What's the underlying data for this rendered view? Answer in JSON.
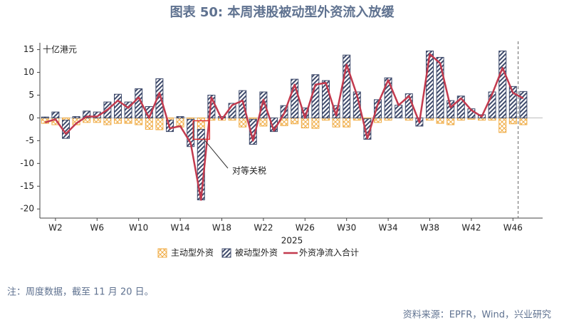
{
  "chart_data": {
    "type": "bar",
    "title": "图表 50: 本周港股被动型外资流入放缓",
    "y_label": "十亿港元",
    "x_label": "2025",
    "annotation": "对等关税",
    "note": "注：周度数据，截至 11 月 20 日。",
    "source": "资料来源：EPFR，Wind，兴业研究",
    "categories": [
      null,
      "W2",
      null,
      null,
      null,
      "W6",
      null,
      null,
      null,
      "W10",
      null,
      null,
      null,
      "W14",
      null,
      null,
      null,
      "W18",
      null,
      null,
      null,
      "W22",
      null,
      null,
      null,
      "W26",
      null,
      null,
      null,
      "W30",
      null,
      null,
      null,
      "W34",
      null,
      null,
      null,
      "W38",
      null,
      null,
      null,
      "W42",
      null,
      null,
      null,
      "W46",
      null
    ],
    "series": [
      {
        "name": "主动型外资",
        "type": "bar",
        "color": "#f0ac45",
        "values": [
          -1.2,
          -1.5,
          -0.5,
          -1.5,
          -1,
          -1,
          -1.5,
          -1.2,
          -1.2,
          -1.5,
          -2.5,
          -2.6,
          -0.5,
          -2,
          -0.3,
          -2.5,
          -0.5,
          -0.5,
          -0.5,
          -2,
          -0.3,
          -1.8,
          0,
          -1.7,
          -1.3,
          -2.2,
          -2.3,
          -0.5,
          -2,
          -2,
          -0.5,
          -0.2,
          -1,
          -0.5,
          0,
          -0.5,
          0,
          -0.5,
          -1.2,
          -1.5,
          -0.5,
          -0.3,
          -0.5,
          -0.5,
          -3.2,
          -1.3,
          -1.5
        ]
      },
      {
        "name": "被动型外资",
        "type": "bar",
        "color": "#3e4a6b",
        "values": [
          0.2,
          1.3,
          -4,
          0.3,
          1.5,
          1.3,
          3.5,
          5.2,
          3.5,
          6.4,
          2.5,
          8.6,
          -2.5,
          0.3,
          -6,
          -15.5,
          5,
          0.3,
          3.2,
          6,
          -5.5,
          5.7,
          -3,
          2.7,
          8.5,
          2.2,
          9.5,
          8.2,
          2.7,
          13.8,
          5.7,
          -4.5,
          4,
          8.8,
          2.8,
          5.3,
          -1.8,
          14.7,
          13.3,
          3.8,
          4.8,
          2,
          0.7,
          5.7,
          14.7,
          6.9,
          5.8
        ]
      },
      {
        "name": "外资净流入合计",
        "type": "line",
        "color": "#c23a4e",
        "values": [
          -1,
          -0.3,
          -3.5,
          -1.2,
          0.3,
          0.3,
          1.8,
          3.8,
          2.2,
          4.5,
          0,
          5.5,
          -2.3,
          -1.8,
          -5.5,
          -18,
          4.5,
          -0.3,
          2.8,
          3.8,
          -5,
          4,
          -2.8,
          1,
          7.3,
          0,
          7.3,
          7.7,
          0.5,
          11.7,
          5,
          -4.5,
          3,
          8.3,
          2.8,
          4.8,
          -1,
          14,
          12,
          2.3,
          4.3,
          1.7,
          0.3,
          5.2,
          11,
          5.5,
          4.3
        ]
      }
    ],
    "ylim": [
      -22,
      16.5
    ],
    "yticks": [
      -20,
      -15,
      -10,
      -5,
      0,
      5,
      10,
      15
    ],
    "legend": "bottom"
  }
}
